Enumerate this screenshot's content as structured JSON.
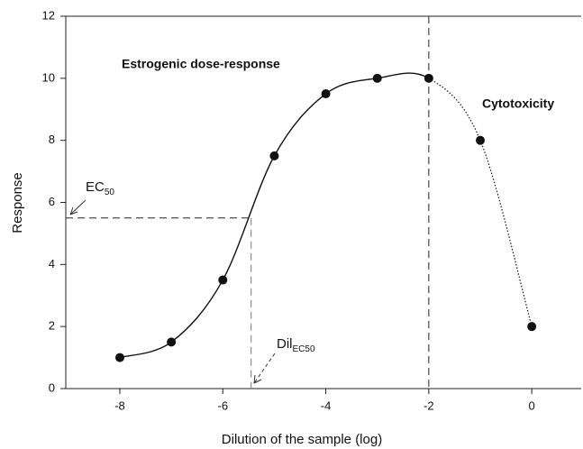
{
  "chart_data": {
    "type": "scatter",
    "x": [
      -8,
      -7,
      -6,
      -5,
      -4,
      -3,
      -2,
      -1,
      0
    ],
    "values": [
      1,
      1.5,
      3.5,
      7.5,
      9.5,
      10,
      10,
      8,
      2
    ],
    "color": "#111111",
    "xlim": [
      -9.05,
      0.96
    ],
    "ylim": [
      0,
      12
    ],
    "xticks": [
      -8,
      -6,
      -4,
      -2,
      0
    ],
    "yticks": [
      0,
      2,
      4,
      6,
      8,
      10,
      12
    ],
    "xlabel": "Dilution of the sample (log)",
    "ylabel": "Response",
    "annotations": {
      "dose_response": "Estrogenic dose-response",
      "cytotoxicity": "Cytotoxicity",
      "ec50": {
        "text": "EC",
        "sub": "50"
      },
      "dil_ec50": {
        "text": "Dil",
        "sub": "EC50"
      }
    },
    "reference": {
      "ec50_x": -5.45,
      "ec50_y": 5.5,
      "cytotoxicity_x": -2
    }
  }
}
